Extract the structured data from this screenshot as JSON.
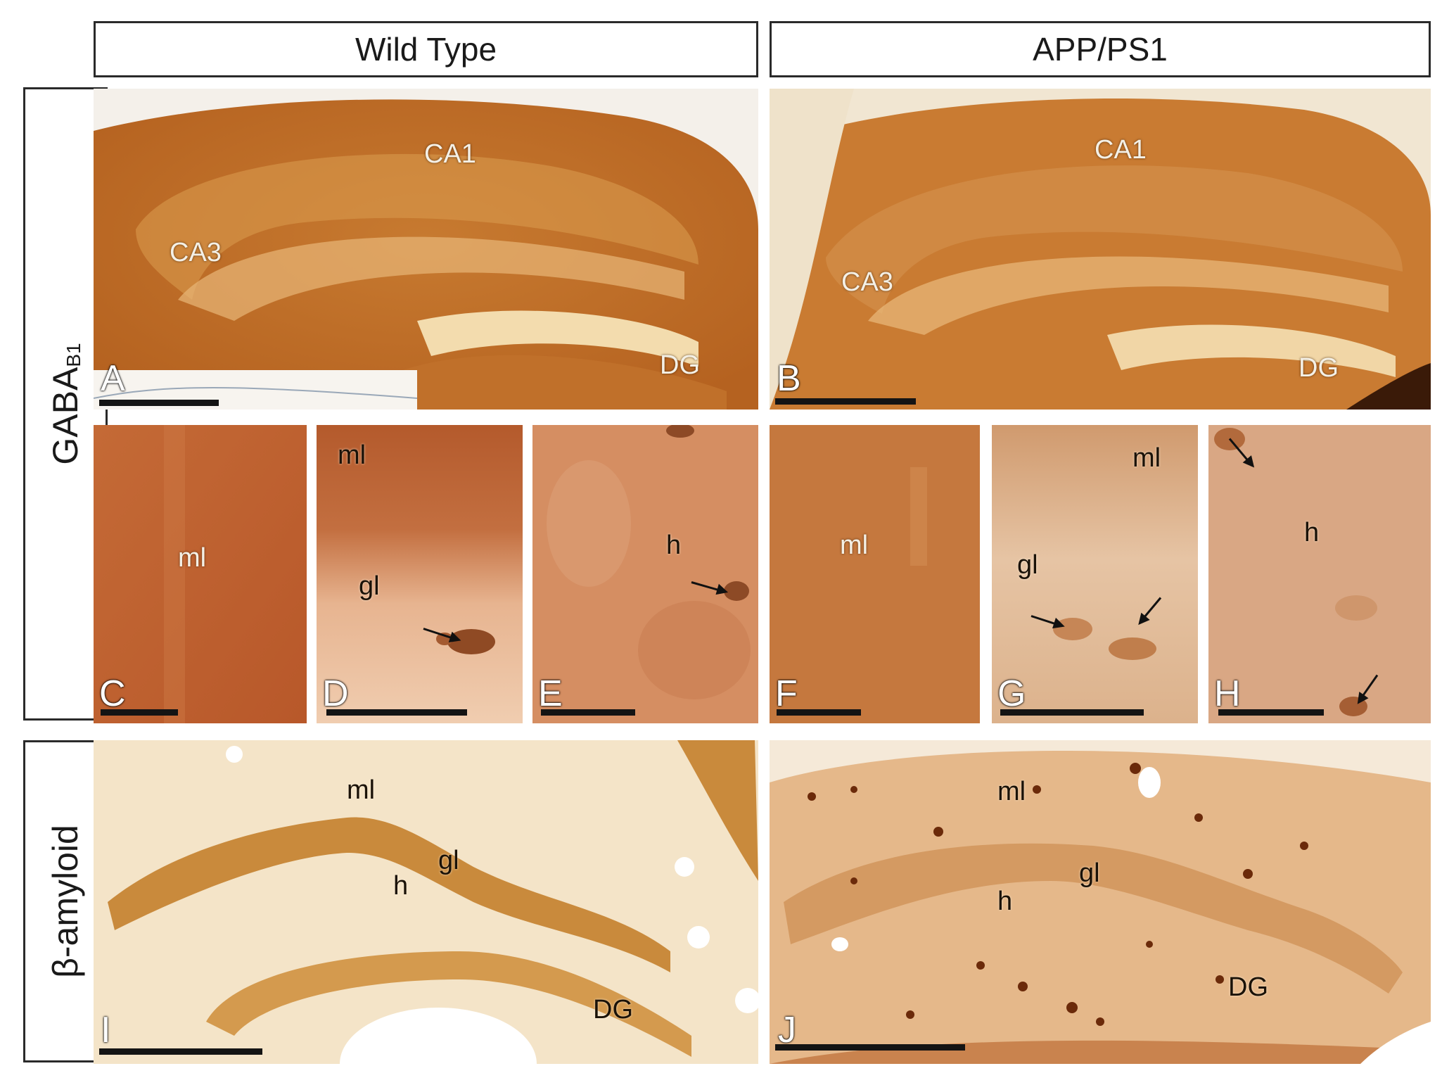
{
  "headers": {
    "wild_type": "Wild Type",
    "app_ps1": "APP/PS1"
  },
  "side_labels": {
    "gaba_main": "GABA",
    "gaba_sub": "B1",
    "amyloid": "β-amyloid"
  },
  "panels": {
    "A": {
      "letter": "A",
      "regions": [
        "CA1",
        "CA3",
        "DG"
      ]
    },
    "B": {
      "letter": "B",
      "regions": [
        "CA1",
        "CA3",
        "DG"
      ]
    },
    "C": {
      "letter": "C",
      "regions": [
        "ml"
      ]
    },
    "D": {
      "letter": "D",
      "regions": [
        "ml",
        "gl"
      ]
    },
    "E": {
      "letter": "E",
      "regions": [
        "h"
      ]
    },
    "F": {
      "letter": "F",
      "regions": [
        "ml"
      ]
    },
    "G": {
      "letter": "G",
      "regions": [
        "ml",
        "gl"
      ]
    },
    "H": {
      "letter": "H",
      "regions": [
        "h"
      ]
    },
    "I": {
      "letter": "I",
      "regions": [
        "ml",
        "gl",
        "h",
        "DG"
      ]
    },
    "J": {
      "letter": "J",
      "regions": [
        "ml",
        "gl",
        "h",
        "DG"
      ]
    }
  },
  "colors": {
    "stain_dark": "#b5631e",
    "stain_mid": "#cf8a3e",
    "stain_light": "#ecc490",
    "background_pale": "#f6f0e4",
    "amyloid_wt_bg": "#f4e4c8",
    "amyloid_plaque": "#6b2a0a"
  }
}
